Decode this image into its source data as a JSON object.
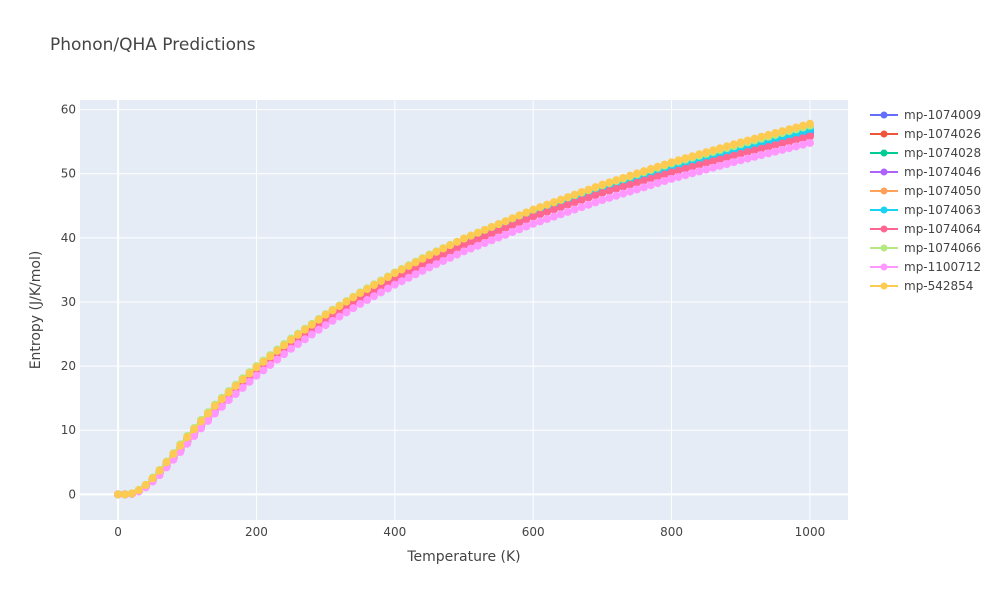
{
  "chart_data": {
    "type": "line",
    "title": "Phonon/QHA Predictions",
    "xlabel": "Temperature (K)",
    "ylabel": "Entropy (J/K/mol)",
    "xlim": [
      -55,
      1055
    ],
    "ylim": [
      -4,
      61.5
    ],
    "x_ticks": [
      0,
      200,
      400,
      600,
      800,
      1000
    ],
    "y_ticks": [
      0,
      10,
      20,
      30,
      40,
      50,
      60
    ],
    "grid": true,
    "legend_position": "right",
    "markers": true,
    "x_step": 10,
    "series": [
      {
        "name": "mp-1074009",
        "color": "#636efa",
        "anchors": [
          [
            0,
            0
          ],
          [
            10,
            0
          ],
          [
            20,
            0.12
          ],
          [
            30,
            0.6
          ],
          [
            40,
            1.3
          ],
          [
            50,
            2.3
          ],
          [
            60,
            3.4
          ],
          [
            70,
            4.6
          ],
          [
            80,
            5.9
          ],
          [
            90,
            7.2
          ],
          [
            100,
            8.5
          ],
          [
            120,
            11.0
          ],
          [
            140,
            13.3
          ],
          [
            160,
            15.4
          ],
          [
            180,
            17.4
          ],
          [
            200,
            19.3
          ],
          [
            250,
            23.6
          ],
          [
            300,
            27.4
          ],
          [
            350,
            30.8
          ],
          [
            400,
            33.9
          ],
          [
            450,
            36.7
          ],
          [
            500,
            39.2
          ],
          [
            600,
            43.6
          ],
          [
            700,
            47.4
          ],
          [
            800,
            50.7
          ],
          [
            900,
            53.6
          ],
          [
            1000,
            56.5
          ]
        ]
      },
      {
        "name": "mp-1074026",
        "color": "#ef553b",
        "anchors": [
          [
            0,
            0
          ],
          [
            10,
            0
          ],
          [
            20,
            0.1
          ],
          [
            30,
            0.5
          ],
          [
            40,
            1.2
          ],
          [
            50,
            2.1
          ],
          [
            60,
            3.2
          ],
          [
            70,
            4.4
          ],
          [
            80,
            5.6
          ],
          [
            90,
            6.9
          ],
          [
            100,
            8.2
          ],
          [
            120,
            10.7
          ],
          [
            140,
            13.0
          ],
          [
            160,
            15.1
          ],
          [
            180,
            17.1
          ],
          [
            200,
            19.0
          ],
          [
            250,
            23.3
          ],
          [
            300,
            27.1
          ],
          [
            350,
            30.5
          ],
          [
            400,
            33.6
          ],
          [
            450,
            36.4
          ],
          [
            500,
            38.9
          ],
          [
            600,
            43.4
          ],
          [
            700,
            47.1
          ],
          [
            800,
            50.4
          ],
          [
            900,
            53.3
          ],
          [
            1000,
            56.0
          ]
        ]
      },
      {
        "name": "mp-1074028",
        "color": "#00cc96",
        "anchors": [
          [
            0,
            0
          ],
          [
            10,
            0
          ],
          [
            20,
            0.12
          ],
          [
            30,
            0.6
          ],
          [
            40,
            1.3
          ],
          [
            50,
            2.3
          ],
          [
            60,
            3.4
          ],
          [
            70,
            4.6
          ],
          [
            80,
            5.9
          ],
          [
            90,
            7.2
          ],
          [
            100,
            8.5
          ],
          [
            120,
            11.0
          ],
          [
            140,
            13.4
          ],
          [
            160,
            15.5
          ],
          [
            180,
            17.5
          ],
          [
            200,
            19.4
          ],
          [
            250,
            23.7
          ],
          [
            300,
            27.5
          ],
          [
            350,
            30.9
          ],
          [
            400,
            34.0
          ],
          [
            450,
            36.8
          ],
          [
            500,
            39.3
          ],
          [
            600,
            43.8
          ],
          [
            700,
            47.6
          ],
          [
            800,
            50.9
          ],
          [
            900,
            53.9
          ],
          [
            1000,
            56.8
          ]
        ]
      },
      {
        "name": "mp-1074046",
        "color": "#ab63fa",
        "anchors": [
          [
            0,
            0
          ],
          [
            10,
            0
          ],
          [
            20,
            0.12
          ],
          [
            30,
            0.6
          ],
          [
            40,
            1.3
          ],
          [
            50,
            2.3
          ],
          [
            60,
            3.4
          ],
          [
            70,
            4.6
          ],
          [
            80,
            5.9
          ],
          [
            90,
            7.2
          ],
          [
            100,
            8.5
          ],
          [
            120,
            11.0
          ],
          [
            140,
            13.3
          ],
          [
            160,
            15.4
          ],
          [
            180,
            17.4
          ],
          [
            200,
            19.3
          ],
          [
            250,
            23.6
          ],
          [
            300,
            27.4
          ],
          [
            350,
            30.8
          ],
          [
            400,
            33.9
          ],
          [
            450,
            36.7
          ],
          [
            500,
            39.2
          ],
          [
            600,
            43.7
          ],
          [
            700,
            47.5
          ],
          [
            800,
            50.8
          ],
          [
            900,
            53.7
          ],
          [
            1000,
            56.6
          ]
        ]
      },
      {
        "name": "mp-1074050",
        "color": "#ffa15a",
        "anchors": [
          [
            0,
            0
          ],
          [
            10,
            0
          ],
          [
            20,
            0.13
          ],
          [
            30,
            0.6
          ],
          [
            40,
            1.4
          ],
          [
            50,
            2.4
          ],
          [
            60,
            3.5
          ],
          [
            70,
            4.8
          ],
          [
            80,
            6.1
          ],
          [
            90,
            7.4
          ],
          [
            100,
            8.7
          ],
          [
            120,
            11.2
          ],
          [
            140,
            13.6
          ],
          [
            160,
            15.7
          ],
          [
            180,
            17.7
          ],
          [
            200,
            19.6
          ],
          [
            250,
            23.9
          ],
          [
            300,
            27.8
          ],
          [
            350,
            31.2
          ],
          [
            400,
            34.3
          ],
          [
            450,
            37.1
          ],
          [
            500,
            39.7
          ],
          [
            600,
            44.2
          ],
          [
            700,
            48.0
          ],
          [
            800,
            51.4
          ],
          [
            900,
            54.4
          ],
          [
            1000,
            57.3
          ]
        ]
      },
      {
        "name": "mp-1074063",
        "color": "#19d3f3",
        "anchors": [
          [
            0,
            0
          ],
          [
            10,
            0
          ],
          [
            20,
            0.12
          ],
          [
            30,
            0.6
          ],
          [
            40,
            1.3
          ],
          [
            50,
            2.3
          ],
          [
            60,
            3.4
          ],
          [
            70,
            4.6
          ],
          [
            80,
            5.9
          ],
          [
            90,
            7.2
          ],
          [
            100,
            8.5
          ],
          [
            120,
            11.0
          ],
          [
            140,
            13.4
          ],
          [
            160,
            15.5
          ],
          [
            180,
            17.5
          ],
          [
            200,
            19.4
          ],
          [
            250,
            23.7
          ],
          [
            300,
            27.5
          ],
          [
            350,
            30.9
          ],
          [
            400,
            34.0
          ],
          [
            450,
            36.8
          ],
          [
            500,
            39.3
          ],
          [
            600,
            43.8
          ],
          [
            700,
            47.6
          ],
          [
            800,
            50.9
          ],
          [
            900,
            53.9
          ],
          [
            1000,
            56.8
          ]
        ]
      },
      {
        "name": "mp-1074064",
        "color": "#ff6692",
        "anchors": [
          [
            0,
            0
          ],
          [
            10,
            0
          ],
          [
            20,
            0.1
          ],
          [
            30,
            0.5
          ],
          [
            40,
            1.2
          ],
          [
            50,
            2.1
          ],
          [
            60,
            3.2
          ],
          [
            70,
            4.4
          ],
          [
            80,
            5.6
          ],
          [
            90,
            6.9
          ],
          [
            100,
            8.2
          ],
          [
            120,
            10.7
          ],
          [
            140,
            13.0
          ],
          [
            160,
            15.1
          ],
          [
            180,
            17.1
          ],
          [
            200,
            19.0
          ],
          [
            250,
            23.3
          ],
          [
            300,
            27.1
          ],
          [
            350,
            30.5
          ],
          [
            400,
            33.6
          ],
          [
            450,
            36.4
          ],
          [
            500,
            38.9
          ],
          [
            600,
            43.3
          ],
          [
            700,
            47.0
          ],
          [
            800,
            50.2
          ],
          [
            900,
            53.1
          ],
          [
            1000,
            55.8
          ]
        ]
      },
      {
        "name": "mp-1074066",
        "color": "#b6e880",
        "anchors": [
          [
            0,
            0
          ],
          [
            10,
            0
          ],
          [
            20,
            0.15
          ],
          [
            30,
            0.7
          ],
          [
            40,
            1.5
          ],
          [
            50,
            2.6
          ],
          [
            60,
            3.8
          ],
          [
            70,
            5.1
          ],
          [
            80,
            6.4
          ],
          [
            90,
            7.8
          ],
          [
            100,
            9.1
          ],
          [
            120,
            11.6
          ],
          [
            140,
            14.0
          ],
          [
            160,
            16.1
          ],
          [
            180,
            18.1
          ],
          [
            200,
            20.0
          ],
          [
            250,
            24.3
          ],
          [
            300,
            28.1
          ],
          [
            350,
            31.5
          ],
          [
            400,
            34.6
          ],
          [
            450,
            37.4
          ],
          [
            500,
            39.9
          ],
          [
            600,
            44.4
          ],
          [
            700,
            48.2
          ],
          [
            800,
            51.6
          ],
          [
            900,
            54.6
          ],
          [
            1000,
            57.5
          ]
        ]
      },
      {
        "name": "mp-1100712",
        "color": "#ff97ff",
        "anchors": [
          [
            0,
            0
          ],
          [
            10,
            0
          ],
          [
            20,
            0.09
          ],
          [
            30,
            0.45
          ],
          [
            40,
            1.1
          ],
          [
            50,
            2.0
          ],
          [
            60,
            3.0
          ],
          [
            70,
            4.2
          ],
          [
            80,
            5.4
          ],
          [
            90,
            6.6
          ],
          [
            100,
            7.9
          ],
          [
            120,
            10.3
          ],
          [
            140,
            12.6
          ],
          [
            160,
            14.7
          ],
          [
            180,
            16.6
          ],
          [
            200,
            18.5
          ],
          [
            250,
            22.7
          ],
          [
            300,
            26.4
          ],
          [
            350,
            29.7
          ],
          [
            400,
            32.7
          ],
          [
            450,
            35.4
          ],
          [
            500,
            37.9
          ],
          [
            600,
            42.2
          ],
          [
            700,
            45.9
          ],
          [
            800,
            49.2
          ],
          [
            900,
            52.1
          ],
          [
            1000,
            54.8
          ]
        ]
      },
      {
        "name": "mp-542854",
        "color": "#fecb52",
        "anchors": [
          [
            0,
            0
          ],
          [
            10,
            0
          ],
          [
            20,
            0.14
          ],
          [
            30,
            0.65
          ],
          [
            40,
            1.45
          ],
          [
            50,
            2.5
          ],
          [
            60,
            3.7
          ],
          [
            70,
            5.0
          ],
          [
            80,
            6.3
          ],
          [
            90,
            7.6
          ],
          [
            100,
            8.9
          ],
          [
            120,
            11.4
          ],
          [
            140,
            13.8
          ],
          [
            160,
            15.9
          ],
          [
            180,
            17.9
          ],
          [
            200,
            19.8
          ],
          [
            250,
            24.1
          ],
          [
            300,
            28.0
          ],
          [
            350,
            31.4
          ],
          [
            400,
            34.5
          ],
          [
            450,
            37.3
          ],
          [
            500,
            39.9
          ],
          [
            600,
            44.4
          ],
          [
            700,
            48.3
          ],
          [
            800,
            51.8
          ],
          [
            900,
            54.9
          ],
          [
            1000,
            57.8
          ]
        ]
      }
    ]
  }
}
